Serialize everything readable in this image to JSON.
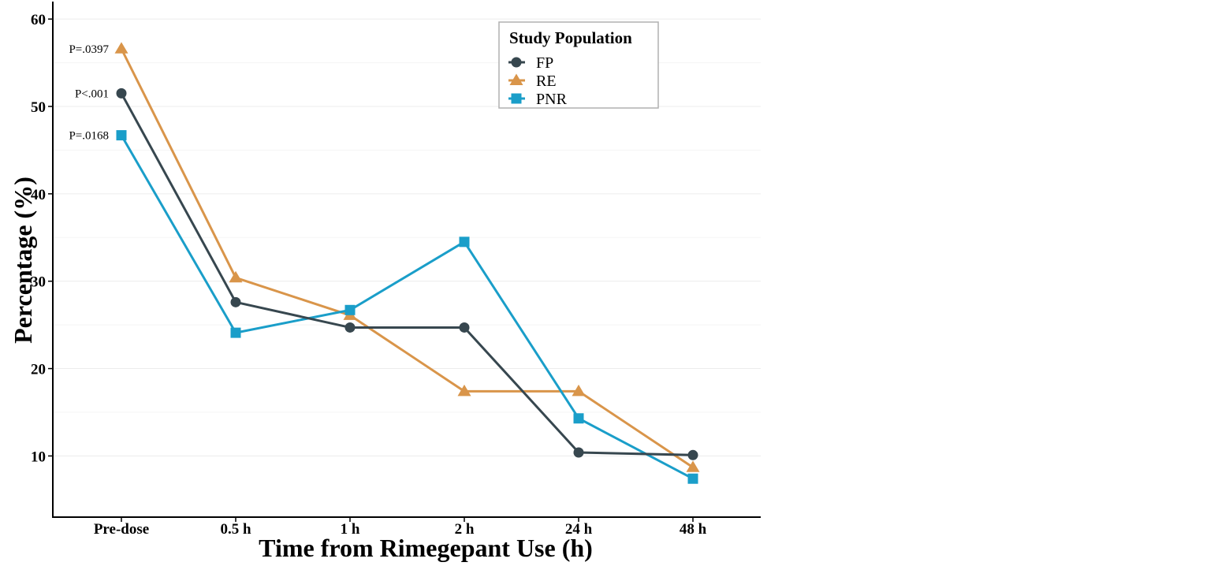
{
  "chart_data": {
    "type": "line",
    "categories": [
      "Pre-dose",
      "0.5 h",
      "1 h",
      "2 h",
      "24 h",
      "48 h"
    ],
    "xlabel": "Time from Rimegepant Use (h)",
    "ylabel": "Percentage (%)",
    "ylim": [
      3,
      62
    ],
    "yticks": [
      10,
      20,
      30,
      40,
      50,
      60
    ],
    "grid": true,
    "legend": {
      "title": "Study Population",
      "placement": "top-right"
    },
    "series": [
      {
        "name": "FP",
        "color": "#37474f",
        "marker": "circle",
        "values": [
          51.5,
          27.6,
          24.7,
          24.7,
          10.4,
          10.1
        ]
      },
      {
        "name": "RE",
        "color": "#d9954a",
        "marker": "triangle",
        "values": [
          56.6,
          30.4,
          26.1,
          17.4,
          17.4,
          8.7
        ]
      },
      {
        "name": "PNR",
        "color": "#1a9ec9",
        "marker": "square",
        "values": [
          46.7,
          24.1,
          26.7,
          34.5,
          14.3,
          7.4
        ]
      }
    ],
    "annotations": [
      {
        "text": "P=.0397",
        "series": "RE",
        "category": "Pre-dose"
      },
      {
        "text": "P<.001",
        "series": "FP",
        "category": "Pre-dose"
      },
      {
        "text": "P=.0168",
        "series": "PNR",
        "category": "Pre-dose"
      }
    ]
  }
}
